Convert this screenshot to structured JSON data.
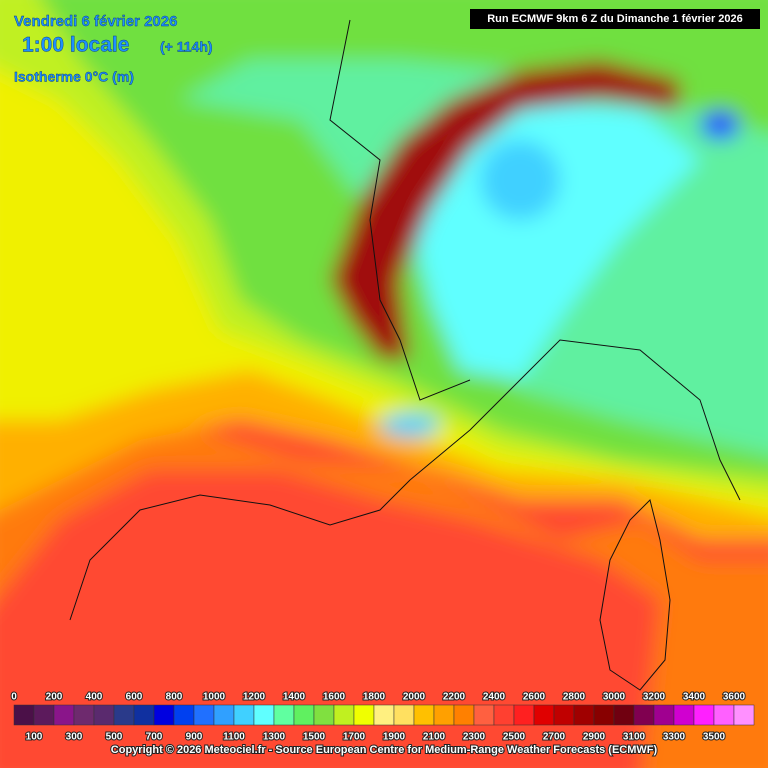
{
  "header": {
    "date": "Vendredi 6 février 2026",
    "time": "1:00 locale",
    "offset": "(+ 114h)",
    "field": "Isotherme 0°C (m)",
    "run": "Run ECMWF 9km 6 Z du Dimanche 1 février 2026"
  },
  "colorbar": {
    "labels_top": [
      0,
      200,
      400,
      600,
      800,
      1000,
      1200,
      1400,
      1600,
      1800,
      2000,
      2200,
      2400,
      2600,
      2800,
      3000,
      3200,
      3400,
      3600
    ],
    "labels_bottom": [
      100,
      300,
      500,
      700,
      900,
      1100,
      1300,
      1500,
      1700,
      1900,
      2100,
      2300,
      2500,
      2700,
      2900,
      3100,
      3300,
      3500
    ],
    "step": 100,
    "colors": [
      "#4b1048",
      "#5c1a5c",
      "#8a158a",
      "#6e2a6e",
      "#5a2a6e",
      "#2a3a8a",
      "#1030a0",
      "#0000e0",
      "#0040f0",
      "#2070ff",
      "#30a0ff",
      "#40d0ff",
      "#60ffff",
      "#60ffa0",
      "#60f060",
      "#80e040",
      "#c0f020",
      "#f0ff00",
      "#fff080",
      "#ffe060",
      "#ffc000",
      "#ffa000",
      "#ff8000",
      "#ff6040",
      "#ff4030",
      "#ff2020",
      "#e00000",
      "#c00000",
      "#a00000",
      "#880000",
      "#700010",
      "#800050",
      "#a00090",
      "#d000d0",
      "#ff20ff",
      "#ff60ff",
      "#ff90ff"
    ]
  },
  "footer": {
    "copyright": "Copyright © 2026 Meteociel.fr - Source European Centre for Medium-Range Weather Forecasts (ECMWF)"
  }
}
